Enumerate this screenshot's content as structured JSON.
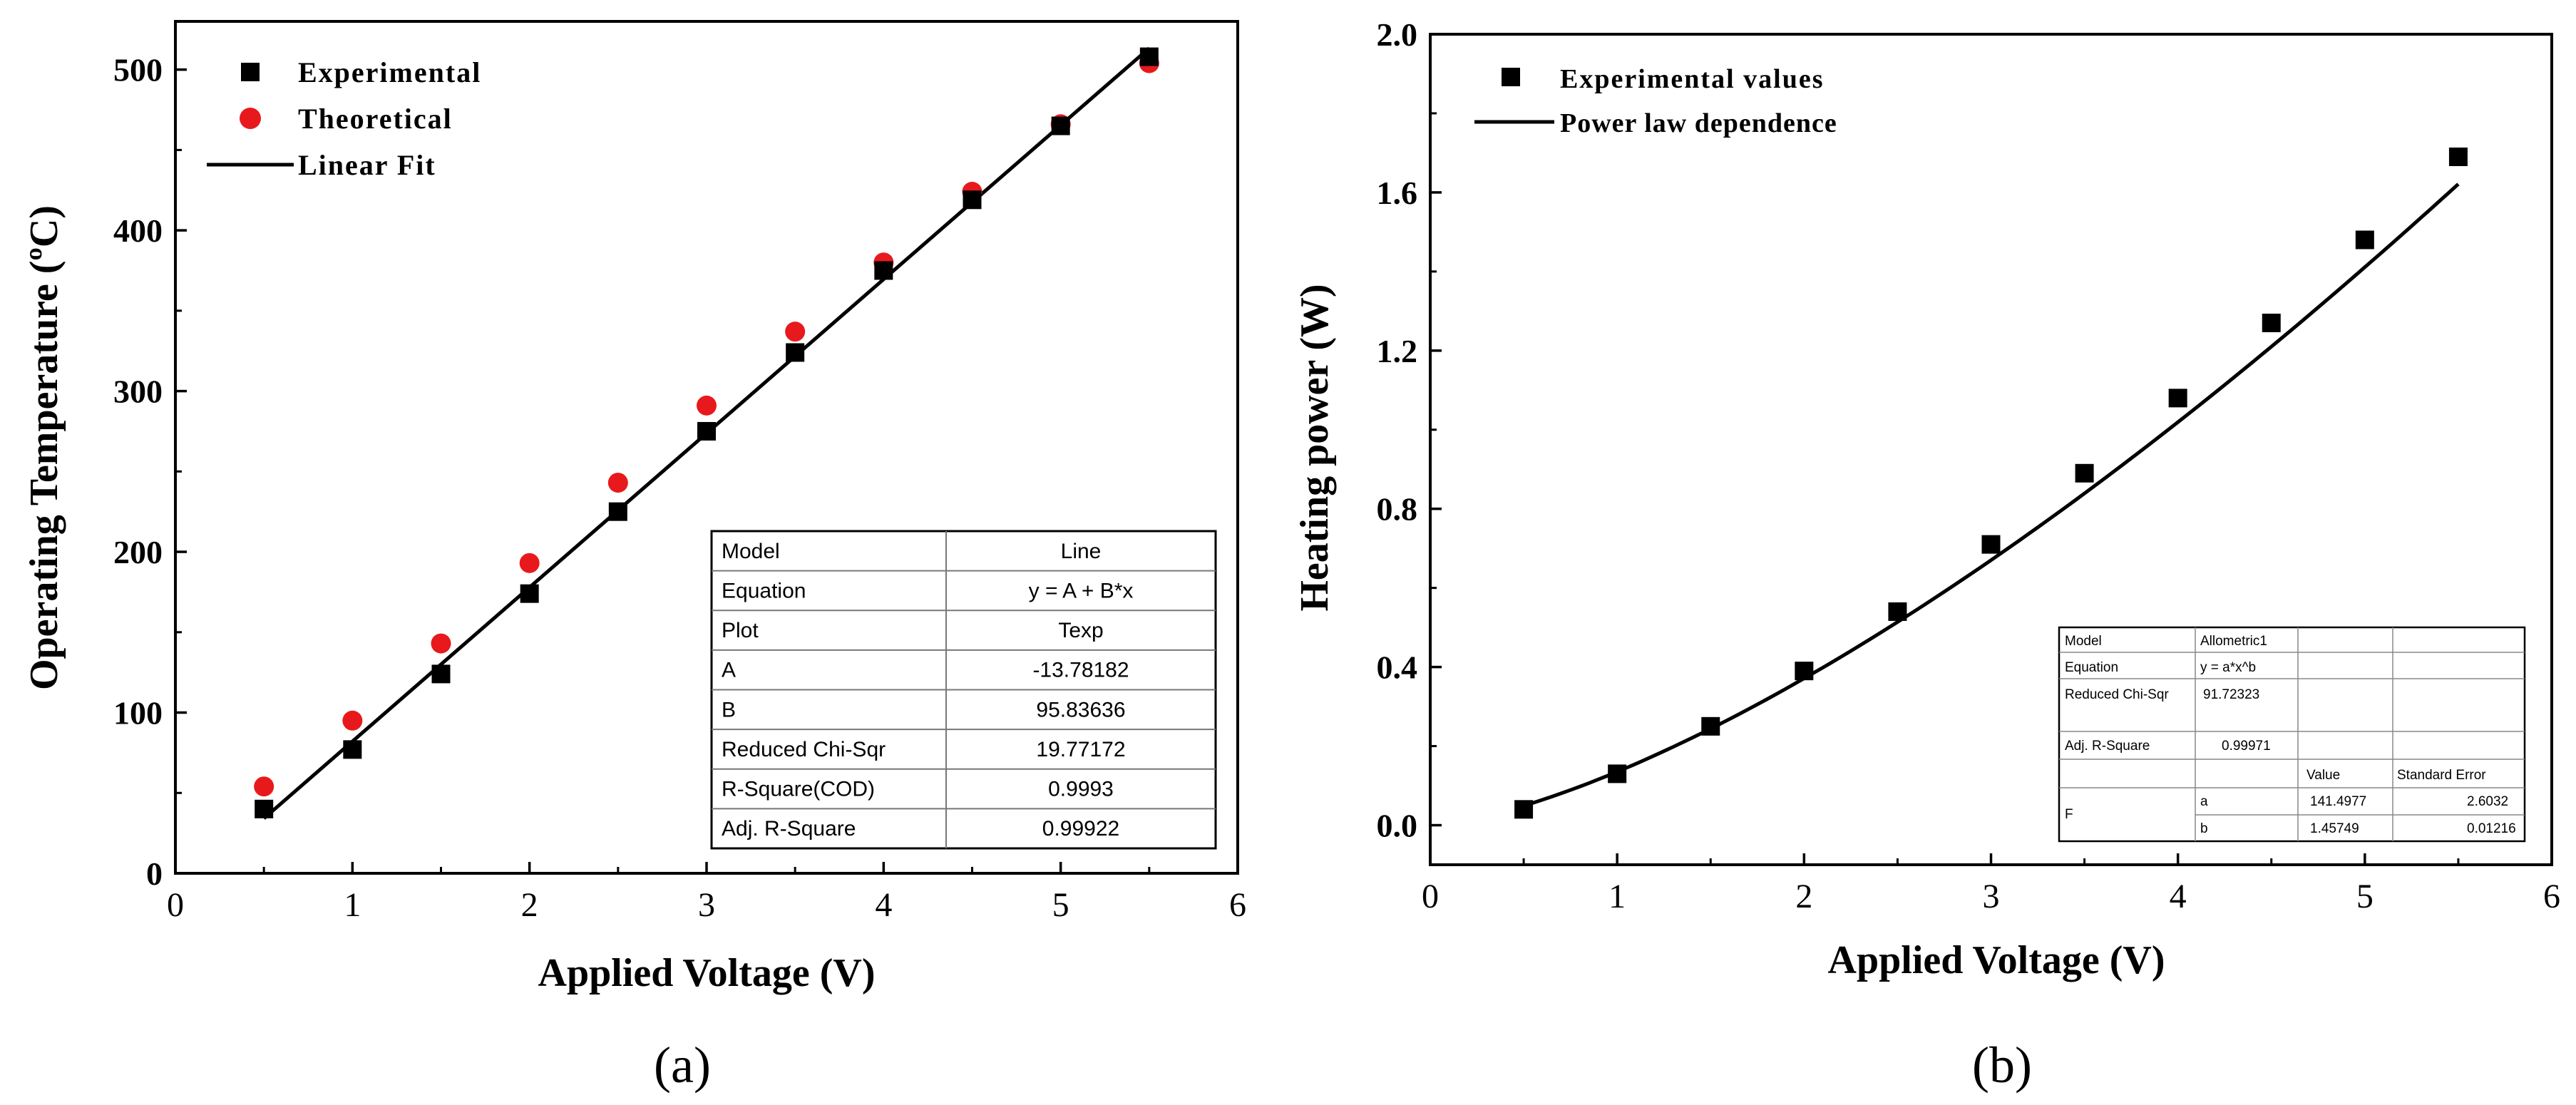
{
  "chart_data": [
    {
      "type": "scatter",
      "panel_label": "(a)",
      "xlabel": "Applied Voltage (V)",
      "ylabel": "Operating Temperature (ºC)",
      "xlim": [
        0,
        6
      ],
      "ylim": [
        0,
        530
      ],
      "x_ticks": [
        "0",
        "1",
        "2",
        "3",
        "4",
        "5",
        "6"
      ],
      "y_ticks": [
        "0",
        "100",
        "200",
        "300",
        "400",
        "500"
      ],
      "x_tick_values": [
        0,
        1,
        2,
        3,
        4,
        5,
        6
      ],
      "y_tick_values": [
        0,
        100,
        200,
        300,
        400,
        500
      ],
      "legend_position": "top-left",
      "series": [
        {
          "name": "Experimental",
          "marker": "square",
          "color": "#000000",
          "x": [
            0.5,
            1,
            1.5,
            2,
            2.5,
            3,
            3.5,
            4,
            4.5,
            5,
            5.5
          ],
          "y": [
            40,
            77,
            124,
            174,
            225,
            275,
            324,
            375,
            419,
            465,
            508
          ]
        },
        {
          "name": "Theoretical",
          "marker": "circle",
          "color": "#e8191c",
          "x": [
            0.5,
            1,
            1.5,
            2,
            2.5,
            3,
            3.5,
            4,
            4.5,
            5,
            5.5
          ],
          "y": [
            54,
            95,
            143,
            193,
            243,
            291,
            337,
            380,
            424,
            466,
            504
          ]
        },
        {
          "name": "Linear Fit",
          "marker": "line",
          "color": "#000000",
          "x": [
            0.5,
            5.5
          ],
          "y": [
            34.14,
            513.32
          ]
        }
      ],
      "fit_table": {
        "rows": [
          [
            "Model",
            "Line"
          ],
          [
            "Equation",
            "y = A + B*x"
          ],
          [
            "Plot",
            "Texp"
          ],
          [
            "A",
            "-13.78182"
          ],
          [
            "B",
            "95.83636"
          ],
          [
            "Reduced Chi-Sqr",
            "19.77172"
          ],
          [
            "R-Square(COD)",
            "0.9993"
          ],
          [
            "Adj. R-Square",
            "0.99922"
          ]
        ]
      }
    },
    {
      "type": "scatter",
      "panel_label": "(b)",
      "xlabel": "Applied Voltage (V)",
      "ylabel": "Heating power (W)",
      "xlim": [
        0,
        6
      ],
      "ylim": [
        -0.1,
        2.0
      ],
      "x_ticks": [
        "0",
        "1",
        "2",
        "3",
        "4",
        "5",
        "6"
      ],
      "y_ticks": [
        "0.0",
        "0.4",
        "0.8",
        "1.2",
        "1.6",
        "2.0"
      ],
      "x_tick_values": [
        0,
        1,
        2,
        3,
        4,
        5,
        6
      ],
      "y_tick_values": [
        0,
        0.4,
        0.8,
        1.2,
        1.6,
        2.0
      ],
      "legend_position": "top-left",
      "series": [
        {
          "name": "Experimental values",
          "marker": "square",
          "color": "#000000",
          "x": [
            0.5,
            1,
            1.5,
            2,
            2.5,
            3,
            3.5,
            4,
            4.5,
            5,
            5.5
          ],
          "y": [
            0.04,
            0.13,
            0.25,
            0.39,
            0.54,
            0.71,
            0.89,
            1.08,
            1.27,
            1.48,
            1.69
          ]
        },
        {
          "name": "Power law dependence",
          "marker": "line",
          "color": "#000000",
          "fit": {
            "a": 0.1414977,
            "b": 1.45749
          }
        }
      ],
      "fit_table": {
        "model_label": "Model",
        "model_value": "Allometric1",
        "equation_label": "Equation",
        "equation_value": "y = a*x^b",
        "chi_label": "Reduced Chi-Sqr",
        "chi_value": "91.72323",
        "adjr_label": "Adj. R-Square",
        "adjr_value": "0.99971",
        "col_value": "Value",
        "col_error": "Standard Error",
        "param_group": "F",
        "a_name": "a",
        "a_value": "141.4977",
        "a_error": "2.6032",
        "b_name": "b",
        "b_value": "1.45749",
        "b_error": "0.01216"
      }
    }
  ]
}
